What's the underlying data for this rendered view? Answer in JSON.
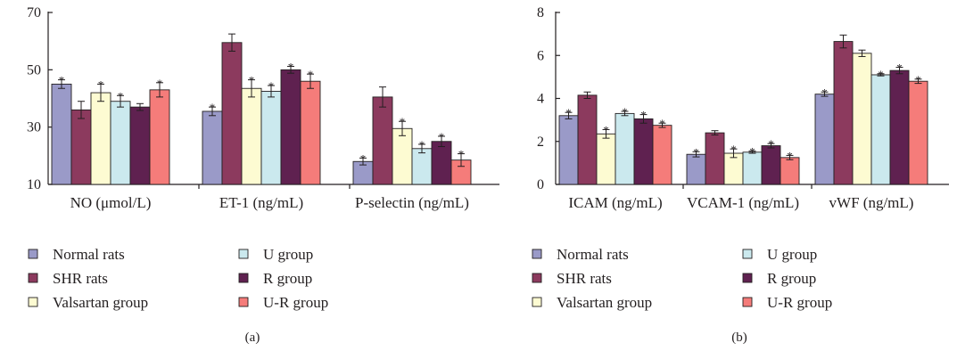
{
  "colors": {
    "series": [
      "#9a9ac8",
      "#8c3a5e",
      "#fdfbd2",
      "#cbe9ee",
      "#5f2150",
      "#f57c7a"
    ],
    "axis": "#231f20"
  },
  "chart_data": [
    {
      "type": "bar",
      "panel_label": "(a)",
      "ylim": [
        10,
        70
      ],
      "yticks": [
        "10",
        "30",
        "50",
        "70"
      ],
      "categories": [
        "NO (μmol/L)",
        "ET-1 (ng/mL)",
        "P-selectin (ng/mL)"
      ],
      "series": [
        {
          "name": "Normal rats",
          "values": [
            45,
            35.5,
            18
          ],
          "errors": [
            1.5,
            1.5,
            1.2
          ],
          "stars": [
            true,
            true,
            true
          ]
        },
        {
          "name": "SHR rats",
          "values": [
            36,
            59.5,
            40.5
          ],
          "errors": [
            3,
            3,
            3.5
          ],
          "stars": [
            false,
            false,
            false
          ]
        },
        {
          "name": "Valsartan group",
          "values": [
            42,
            43.5,
            29.5
          ],
          "errors": [
            3,
            3,
            2.5
          ],
          "stars": [
            true,
            true,
            true
          ]
        },
        {
          "name": "U group",
          "values": [
            39,
            42.5,
            22.5
          ],
          "errors": [
            2,
            2,
            1.5
          ],
          "stars": [
            true,
            true,
            true
          ]
        },
        {
          "name": "R group",
          "values": [
            37,
            50,
            25
          ],
          "errors": [
            1.2,
            1.2,
            1.8
          ],
          "stars": [
            false,
            true,
            true
          ]
        },
        {
          "name": "U-R group",
          "values": [
            43,
            46,
            18.5
          ],
          "errors": [
            2.5,
            2.5,
            2.2
          ],
          "stars": [
            true,
            true,
            true
          ]
        }
      ]
    },
    {
      "type": "bar",
      "panel_label": "(b)",
      "ylim": [
        0,
        8
      ],
      "yticks": [
        "0",
        "2",
        "4",
        "6",
        "8"
      ],
      "categories": [
        "ICAM (ng/mL)",
        "VCAM-1 (ng/mL)",
        "vWF (ng/mL)"
      ],
      "series": [
        {
          "name": "Normal rats",
          "values": [
            3.2,
            1.4,
            4.2
          ],
          "errors": [
            0.15,
            0.12,
            0.1
          ],
          "stars": [
            true,
            true,
            true
          ]
        },
        {
          "name": "SHR rats",
          "values": [
            4.15,
            2.4,
            6.65
          ],
          "errors": [
            0.15,
            0.1,
            0.3
          ],
          "stars": [
            false,
            false,
            false
          ]
        },
        {
          "name": "Valsartan group",
          "values": [
            2.35,
            1.45,
            6.1
          ],
          "errors": [
            0.2,
            0.2,
            0.15
          ],
          "stars": [
            true,
            true,
            false
          ]
        },
        {
          "name": "U group",
          "values": [
            3.3,
            1.5,
            5.1
          ],
          "errors": [
            0.1,
            0.05,
            0.05
          ],
          "stars": [
            true,
            true,
            true
          ]
        },
        {
          "name": "R group",
          "values": [
            3.05,
            1.8,
            5.3
          ],
          "errors": [
            0.2,
            0.1,
            0.15
          ],
          "stars": [
            true,
            true,
            true
          ]
        },
        {
          "name": "U-R group",
          "values": [
            2.75,
            1.25,
            4.8
          ],
          "errors": [
            0.1,
            0.1,
            0.1
          ],
          "stars": [
            true,
            true,
            true
          ]
        }
      ]
    }
  ]
}
